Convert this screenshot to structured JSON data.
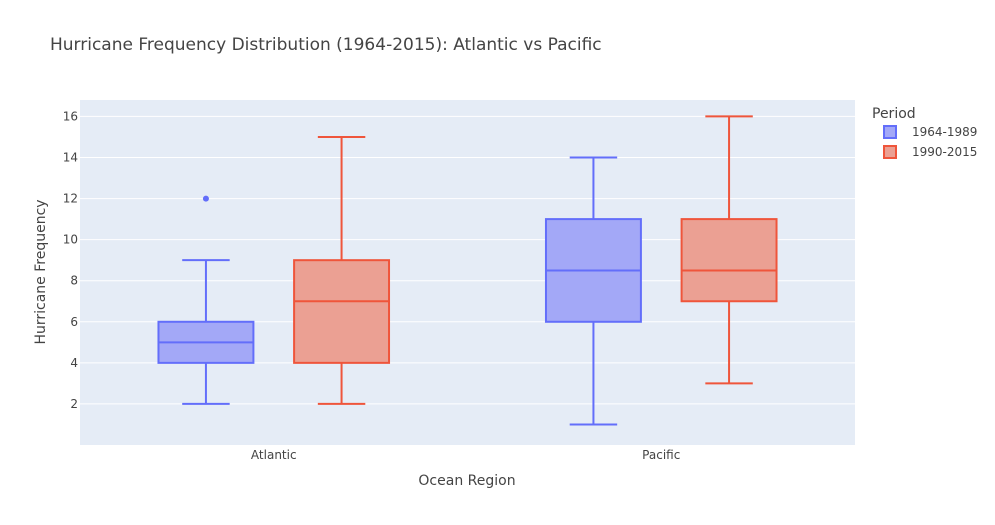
{
  "chart_data": {
    "type": "box",
    "title": "Hurricane Frequency Distribution (1964-2015): Atlantic vs Pacific",
    "xlabel": "Ocean Region",
    "ylabel": "Hurricane Frequency",
    "categories": [
      "Atlantic",
      "Pacific"
    ],
    "ylim": [
      0,
      16.8
    ],
    "yticks": [
      "2",
      "4",
      "6",
      "8",
      "10",
      "12",
      "14",
      "16"
    ],
    "grid": true,
    "legend": {
      "title": "Period",
      "placement": "top-right"
    },
    "series": [
      {
        "name": "1964-1989",
        "color": "#636efa",
        "fill": "#a3a8f7",
        "boxes": [
          {
            "category": "Atlantic",
            "min": 2,
            "q1": 4,
            "median": 5,
            "q3": 6,
            "max": 9,
            "outliers": [
              12
            ]
          },
          {
            "category": "Pacific",
            "min": 1,
            "q1": 6,
            "median": 8.5,
            "q3": 11,
            "max": 14,
            "outliers": []
          }
        ]
      },
      {
        "name": "1990-2015",
        "color": "#ef553b",
        "fill": "#eba093",
        "boxes": [
          {
            "category": "Atlantic",
            "min": 2,
            "q1": 4,
            "median": 7,
            "q3": 9,
            "max": 15,
            "outliers": []
          },
          {
            "category": "Pacific",
            "min": 3,
            "q1": 7,
            "median": 8.5,
            "q3": 11,
            "max": 16,
            "outliers": []
          }
        ]
      }
    ]
  }
}
